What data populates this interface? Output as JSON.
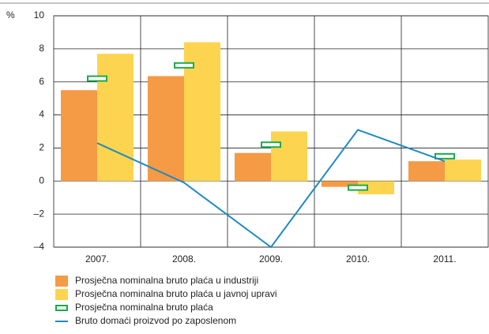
{
  "chart_data": {
    "type": "bar",
    "y_label": "%",
    "categories": [
      "2007.",
      "2008.",
      "2009.",
      "2010.",
      "2011."
    ],
    "series": [
      {
        "name": "Prosječna nominalna bruto plaća u industriji",
        "style": "bar",
        "color": "#f59a45",
        "values": [
          5.5,
          6.35,
          1.7,
          -0.35,
          1.2
        ]
      },
      {
        "name": "Prosječna nominalna bruto plaća u javnoj upravi",
        "style": "bar",
        "color": "#fdd44f",
        "values": [
          7.7,
          8.4,
          3.0,
          -0.8,
          1.3
        ]
      },
      {
        "name": "Prosječna nominalna bruto plaća",
        "style": "marker",
        "color": "#1aab4b",
        "values": [
          6.2,
          7.0,
          2.2,
          -0.4,
          1.5
        ]
      },
      {
        "name": "Bruto domaći proizvod po zaposlenom",
        "style": "line",
        "color": "#1f8ac0",
        "values": [
          2.3,
          -0.1,
          -4.0,
          3.1,
          1.2
        ]
      }
    ],
    "ylim": [
      -4,
      10
    ],
    "yticks": [
      {
        "value": -4,
        "label": "–4"
      },
      {
        "value": -2,
        "label": "–2"
      },
      0,
      2,
      4,
      6,
      8,
      10
    ],
    "grid": true
  }
}
